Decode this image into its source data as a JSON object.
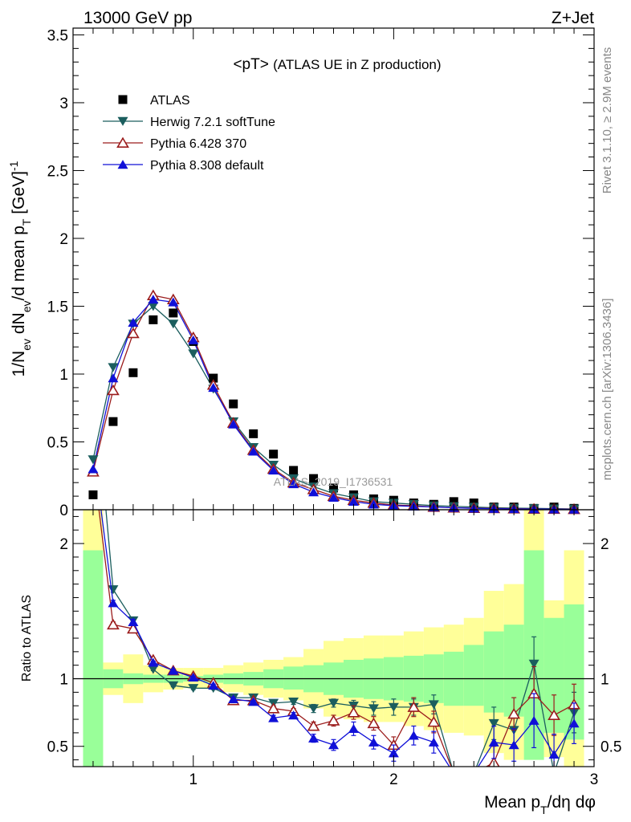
{
  "header": {
    "energy_label": "13000 GeV pp",
    "process_label": "Z+Jet"
  },
  "side_notes": {
    "rivet_label": "Rivet 3.1.10, ≥ 2.9M events",
    "mcplots_label": "mcplots.cern.ch [arXiv:1306.3436]"
  },
  "chart_data": [
    {
      "type": "scatter",
      "title": "<pT>",
      "subtitle": "(ATLAS UE in Z production)",
      "ylabel": "1/N_ev dN_ev/d mean p_T [GeV]^-1",
      "watermark": "ATLAS_2019_I1736531",
      "xlim": [
        0.4,
        3.0
      ],
      "ylim": [
        0,
        3.55
      ],
      "yticks": [
        0,
        0.5,
        1,
        1.5,
        2,
        2.5,
        3,
        3.5
      ],
      "ytick_labels": [
        "0",
        "0.5",
        "1",
        "1.5",
        "2",
        "2.5",
        "3",
        "3.5"
      ],
      "x": [
        0.5,
        0.6,
        0.7,
        0.8,
        0.9,
        1.0,
        1.1,
        1.2,
        1.3,
        1.4,
        1.5,
        1.6,
        1.7,
        1.8,
        1.9,
        2.0,
        2.1,
        2.2,
        2.3,
        2.4,
        2.5,
        2.6,
        2.7,
        2.8,
        2.9
      ],
      "series": [
        {
          "name": "ATLAS",
          "color": "#000000",
          "marker": "square",
          "values": [
            0.11,
            0.65,
            1.01,
            1.4,
            1.45,
            1.24,
            0.97,
            0.78,
            0.56,
            0.41,
            0.29,
            0.23,
            0.16,
            0.11,
            0.08,
            0.07,
            0.05,
            0.04,
            0.06,
            0.05,
            0.02,
            0.02,
            0.01,
            0.02,
            0.01
          ]
        },
        {
          "name": "Herwig 7.2.1 softTune",
          "color": "#1b5e5e",
          "marker": "triangle-down",
          "values": [
            0.37,
            1.05,
            1.37,
            1.5,
            1.37,
            1.15,
            0.89,
            0.65,
            0.46,
            0.33,
            0.23,
            0.17,
            0.12,
            0.09,
            0.06,
            0.05,
            0.04,
            0.03,
            0.025,
            0.02,
            0.015,
            0.012,
            0.01,
            0.008,
            0.006
          ]
        },
        {
          "name": "Pythia 6.428 370",
          "color": "#9b1c1c",
          "marker": "triangle-up-open",
          "values": [
            0.28,
            0.88,
            1.3,
            1.58,
            1.55,
            1.27,
            0.92,
            0.64,
            0.44,
            0.3,
            0.2,
            0.15,
            0.1,
            0.07,
            0.05,
            0.035,
            0.03,
            0.02,
            0.015,
            0.012,
            0.01,
            0.008,
            0.006,
            0.005,
            0.004
          ]
        },
        {
          "name": "Pythia 8.308 default",
          "color": "#1010d8",
          "marker": "triangle-up",
          "values": [
            0.3,
            0.97,
            1.38,
            1.55,
            1.53,
            1.25,
            0.9,
            0.63,
            0.43,
            0.29,
            0.19,
            0.13,
            0.09,
            0.06,
            0.04,
            0.03,
            0.025,
            0.02,
            0.015,
            0.01,
            0.008,
            0.006,
            0.005,
            0.004,
            0.003
          ]
        }
      ]
    },
    {
      "type": "line",
      "ylabel": "Ratio to ATLAS",
      "xlabel": "Mean p_T/dη dφ",
      "xlim": [
        0.4,
        3.0
      ],
      "ylim": [
        0.35,
        2.25
      ],
      "xticks": [
        1,
        2,
        3
      ],
      "xtick_labels": [
        "1",
        "2",
        "3"
      ],
      "yticks": [
        0.5,
        1,
        2
      ],
      "ytick_labels": [
        "0.5",
        "1",
        "2"
      ],
      "x": [
        0.5,
        0.6,
        0.7,
        0.8,
        0.9,
        1.0,
        1.1,
        1.2,
        1.3,
        1.4,
        1.5,
        1.6,
        1.7,
        1.8,
        1.9,
        2.0,
        2.1,
        2.2,
        2.3,
        2.4,
        2.5,
        2.6,
        2.7,
        2.8,
        2.9
      ],
      "bands": {
        "stat_color": "#99ff99",
        "total_color": "#ffff99",
        "stat_low": [
          0.3,
          0.93,
          0.96,
          0.97,
          0.97,
          0.98,
          0.97,
          0.96,
          0.95,
          0.93,
          0.92,
          0.9,
          0.88,
          0.86,
          0.85,
          0.84,
          0.83,
          0.82,
          0.8,
          0.8,
          0.75,
          0.72,
          0.4,
          0.6,
          0.55
        ],
        "stat_high": [
          1.95,
          1.07,
          1.04,
          1.03,
          1.03,
          1.02,
          1.03,
          1.04,
          1.05,
          1.07,
          1.09,
          1.1,
          1.12,
          1.14,
          1.15,
          1.16,
          1.17,
          1.18,
          1.2,
          1.25,
          1.35,
          1.4,
          1.95,
          1.45,
          1.55
        ],
        "total_low": [
          0.3,
          0.88,
          0.82,
          0.9,
          0.92,
          0.93,
          0.93,
          0.9,
          0.88,
          0.86,
          0.84,
          0.78,
          0.72,
          0.7,
          0.68,
          0.68,
          0.65,
          0.62,
          0.6,
          0.58,
          0.45,
          0.4,
          0.4,
          0.42,
          0.35
        ],
        "total_high": [
          2.3,
          1.12,
          1.18,
          1.1,
          1.08,
          1.08,
          1.08,
          1.1,
          1.12,
          1.14,
          1.16,
          1.22,
          1.28,
          1.3,
          1.32,
          1.32,
          1.35,
          1.38,
          1.4,
          1.45,
          1.65,
          1.7,
          2.3,
          1.58,
          1.95
        ]
      },
      "series": [
        {
          "name": "Herwig 7.2.1 softTune",
          "color": "#1b5e5e",
          "values": [
            3.3,
            1.66,
            1.43,
            1.07,
            0.95,
            0.93,
            0.93,
            0.86,
            0.86,
            0.82,
            0.83,
            0.78,
            0.82,
            0.8,
            0.78,
            0.79,
            0.79,
            0.81,
            0.3,
            0.3,
            0.67,
            0.62,
            1.11,
            0.3,
            0.75
          ]
        },
        {
          "name": "Pythia 6.428 370",
          "color": "#9b1c1c",
          "values": [
            2.6,
            1.4,
            1.37,
            1.14,
            1.06,
            1.02,
            0.97,
            0.84,
            0.84,
            0.78,
            0.76,
            0.65,
            0.69,
            0.75,
            0.67,
            0.51,
            0.79,
            0.68,
            0.3,
            0.3,
            0.38,
            0.74,
            0.89,
            0.73,
            0.81
          ]
        },
        {
          "name": "Pythia 8.308 default",
          "color": "#1010d8",
          "values": [
            2.7,
            1.56,
            1.42,
            1.12,
            1.06,
            1.01,
            0.95,
            0.85,
            0.83,
            0.71,
            0.73,
            0.56,
            0.51,
            0.63,
            0.53,
            0.45,
            0.58,
            0.53,
            0.3,
            0.3,
            0.53,
            0.51,
            0.69,
            0.44,
            0.67
          ]
        }
      ],
      "errors": [
        [
          0.0,
          0.02,
          0.02,
          0.01,
          0.01,
          0.01,
          0.01,
          0.01,
          0.01,
          0.02,
          0.02,
          0.03,
          0.03,
          0.04,
          0.05,
          0.06,
          0.06,
          0.07,
          0.1,
          0.1,
          0.12,
          0.12,
          0.2,
          0.15,
          0.15
        ],
        [
          0.0,
          0.02,
          0.02,
          0.01,
          0.01,
          0.01,
          0.01,
          0.01,
          0.01,
          0.02,
          0.02,
          0.03,
          0.04,
          0.05,
          0.05,
          0.06,
          0.07,
          0.08,
          0.1,
          0.1,
          0.12,
          0.12,
          0.2,
          0.15,
          0.15
        ],
        [
          0.0,
          0.02,
          0.02,
          0.01,
          0.01,
          0.01,
          0.01,
          0.01,
          0.01,
          0.02,
          0.02,
          0.03,
          0.04,
          0.05,
          0.05,
          0.06,
          0.07,
          0.08,
          0.1,
          0.1,
          0.12,
          0.12,
          0.2,
          0.15,
          0.15
        ]
      ]
    }
  ]
}
